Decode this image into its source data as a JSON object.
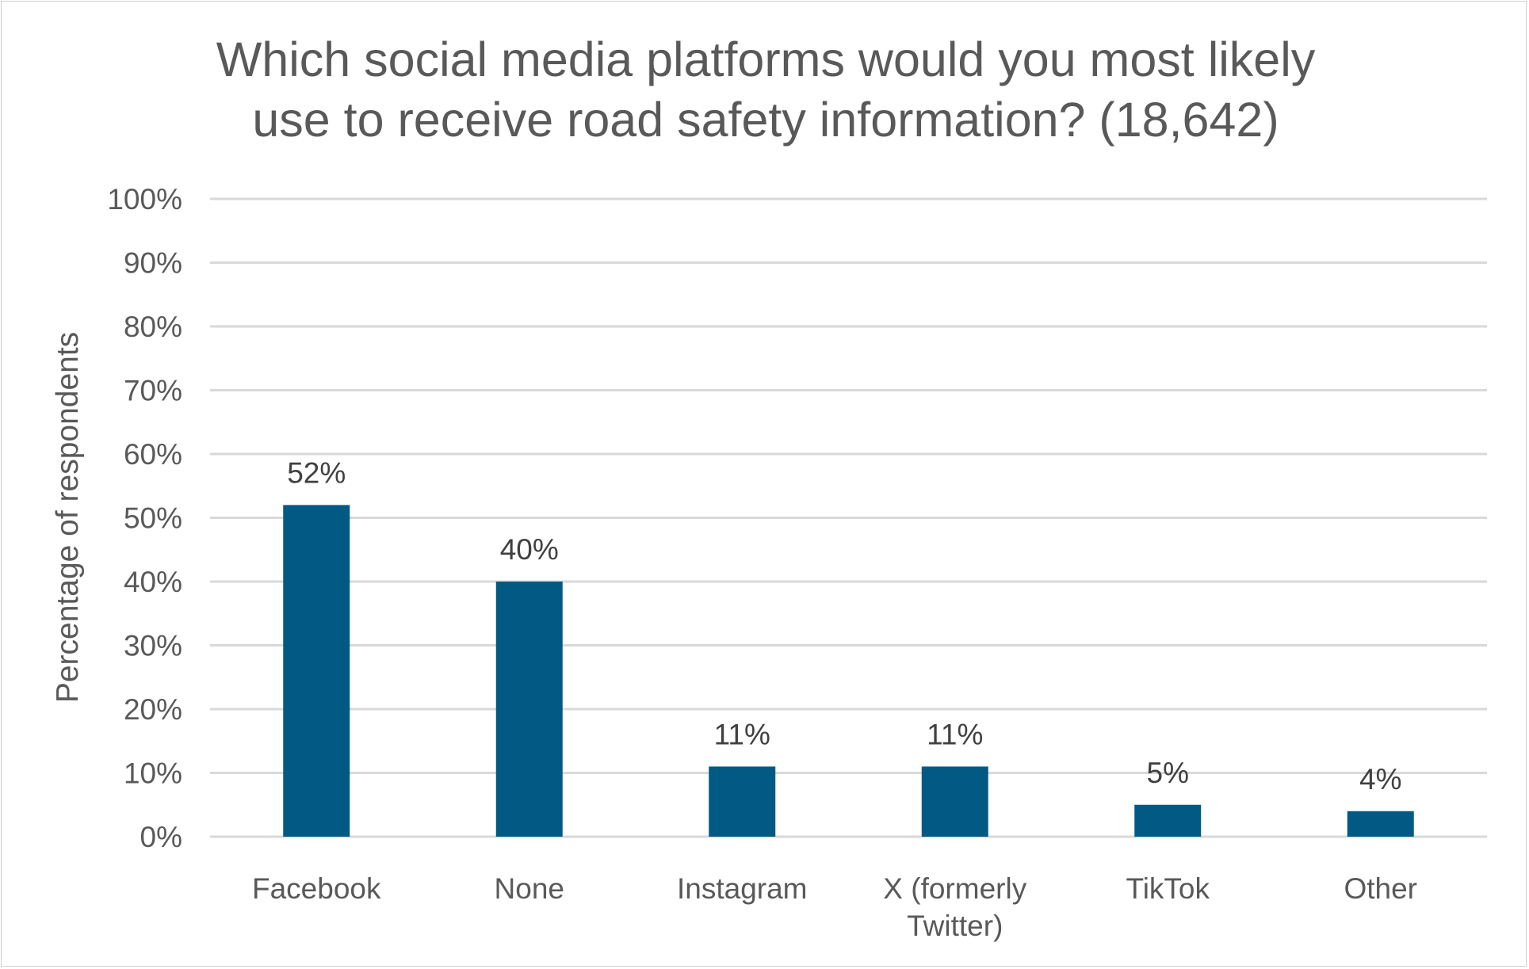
{
  "chart_data": {
    "type": "bar",
    "title": [
      "Which social media platforms would you most likely",
      "use to receive road safety information? (18,642)"
    ],
    "xlabel": "",
    "ylabel": "Percentage of respondents",
    "categories": [
      [
        "Facebook"
      ],
      [
        "None"
      ],
      [
        "Instagram"
      ],
      [
        "X (formerly",
        "Twitter)"
      ],
      [
        "TikTok"
      ],
      [
        "Other"
      ]
    ],
    "values": [
      52,
      40,
      11,
      11,
      5,
      4
    ],
    "data_labels": [
      "52%",
      "40%",
      "11%",
      "11%",
      "5%",
      "4%"
    ],
    "ylim": [
      0,
      100
    ],
    "yticks": [
      "0%",
      "10%",
      "20%",
      "30%",
      "40%",
      "50%",
      "60%",
      "70%",
      "80%",
      "90%",
      "100%"
    ],
    "grid": true,
    "legend": "none",
    "colors": {
      "bar": "#025A84",
      "grid": "#D9D9D9",
      "text": "#404040",
      "title": "#595959"
    }
  }
}
